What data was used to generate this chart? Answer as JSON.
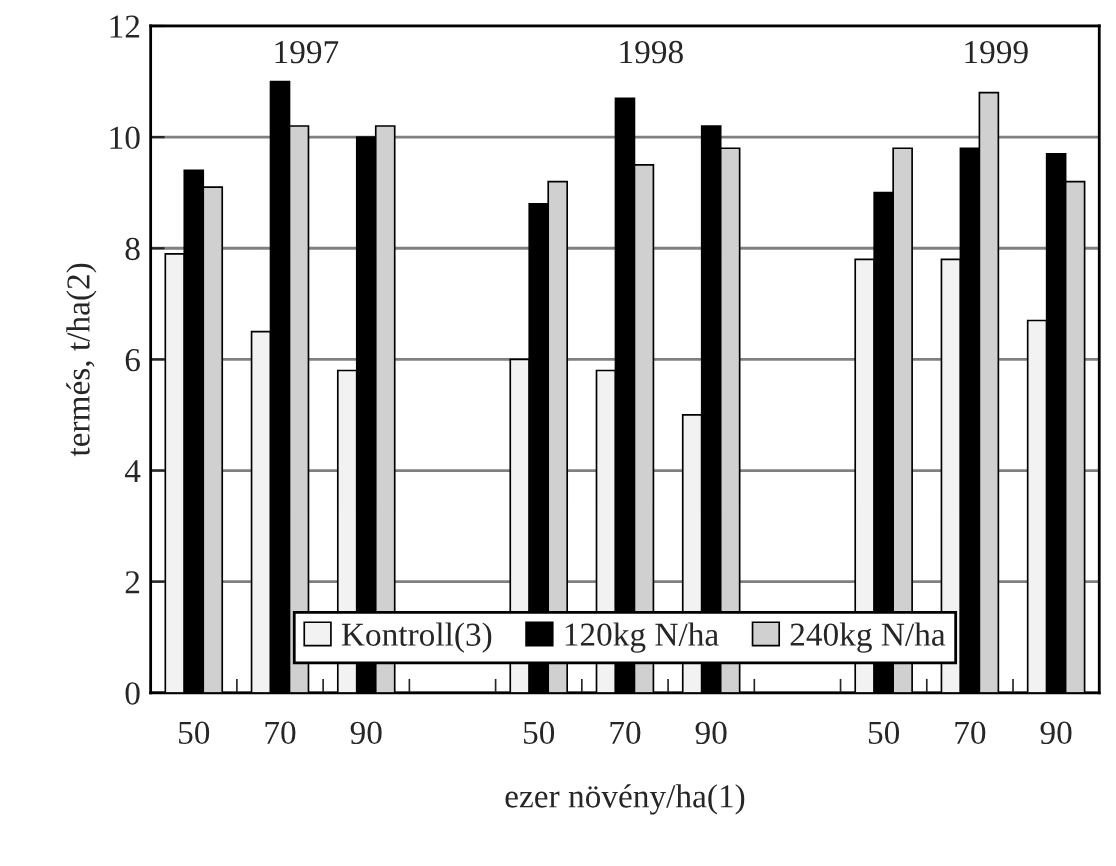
{
  "chart_data": {
    "type": "bar",
    "xlabel": "ezer növény/ha(1)",
    "ylabel": "termés, t/ha(2)",
    "categories": [
      "50",
      "70",
      "90",
      null,
      "50",
      "70",
      "90",
      null,
      "50",
      "70",
      "90"
    ],
    "series": [
      {
        "name": "Kontroll(3)",
        "color": "#f2f2f2",
        "values": [
          7.9,
          6.5,
          5.8,
          null,
          6.0,
          5.8,
          5.0,
          null,
          7.8,
          7.8,
          6.7
        ]
      },
      {
        "name": "120kg N/ha",
        "color": "#000000",
        "values": [
          9.4,
          11.0,
          10.0,
          null,
          8.8,
          10.7,
          10.2,
          null,
          9.0,
          9.8,
          9.7
        ]
      },
      {
        "name": "240kg N/ha",
        "color": "#d0d0d0",
        "values": [
          9.1,
          10.2,
          10.2,
          null,
          9.2,
          9.5,
          9.8,
          null,
          9.8,
          10.8,
          9.2
        ]
      }
    ],
    "annotations": [
      "1997",
      "1998",
      "1999"
    ],
    "ylim": [
      0,
      12
    ],
    "yticks": [
      0,
      2,
      4,
      6,
      8,
      10,
      12
    ],
    "grid": "y",
    "legend": "bottom"
  }
}
